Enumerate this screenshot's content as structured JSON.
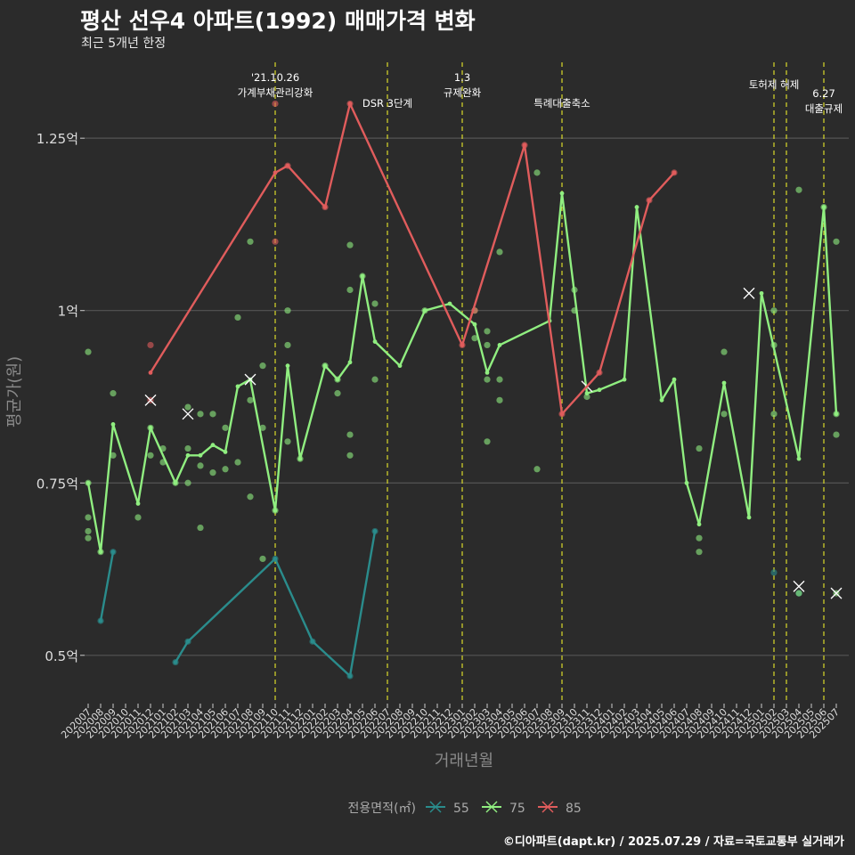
{
  "header": {
    "title": "평산 선우4 아파트(1992) 매매가격 변화",
    "subtitle": "최근 5개년 한정"
  },
  "caption": "©디아파트(dapt.kr) / 2025.07.29 / 자료=국토교통부 실거래가",
  "colors": {
    "background": "#2b2b2b",
    "grid": "#555555",
    "event_line": "#d9d92b",
    "s55": "#2a8c8c",
    "s75": "#90ee80",
    "s85": "#e05c5c"
  },
  "chart_data": {
    "type": "line",
    "title": "평산 선우4 아파트(1992) 매매가격 변화",
    "subtitle": "최근 5개년 한정",
    "xlabel": "거래년월",
    "ylabel": "평균가(원)",
    "ylim": [
      0.43,
      1.36
    ],
    "grid": true,
    "legend_position": "bottom",
    "legend_title": "전용면적(㎡)",
    "x_ticks": [
      "202007",
      "202008",
      "202009",
      "202010",
      "202011",
      "202012",
      "202101",
      "202102",
      "202103",
      "202104",
      "202105",
      "202106",
      "202107",
      "202108",
      "202109",
      "202110",
      "202111",
      "202112",
      "202201",
      "202202",
      "202203",
      "202204",
      "202205",
      "202206",
      "202207",
      "202208",
      "202209",
      "202210",
      "202211",
      "202212",
      "202301",
      "202302",
      "202303",
      "202304",
      "202305",
      "202306",
      "202307",
      "202308",
      "202309",
      "202310",
      "202311",
      "202312",
      "202401",
      "202402",
      "202403",
      "202404",
      "202405",
      "202406",
      "202407",
      "202408",
      "202409",
      "202410",
      "202411",
      "202412",
      "202501",
      "202502",
      "202503",
      "202504",
      "202505",
      "202506",
      "202507"
    ],
    "y_ticks": [
      {
        "value": 0.5,
        "label": "0.5억"
      },
      {
        "value": 0.75,
        "label": "0.75억"
      },
      {
        "value": 1.0,
        "label": "1억"
      },
      {
        "value": 1.25,
        "label": "1.25억"
      }
    ],
    "events": [
      {
        "x": "202110",
        "lines": [
          "'21.10.26",
          "가계부채관리강화"
        ],
        "row": 0
      },
      {
        "x": "202207",
        "lines": [
          "DSR 3단계"
        ],
        "row": 1
      },
      {
        "x": "202301",
        "lines": [
          "1.3",
          "규제완화"
        ],
        "row": 0
      },
      {
        "x": "202309",
        "lines": [
          "특례대출축소"
        ],
        "row": 1
      },
      {
        "x": "202502",
        "lines": [
          "토허제 해제"
        ],
        "row": 2
      },
      {
        "x": "202503",
        "lines": [],
        "row": 2
      },
      {
        "x": "202506",
        "lines": [
          "6.27",
          "대출규제"
        ],
        "row": 3
      }
    ],
    "series": [
      {
        "name": "55",
        "color": "#2a8c8c",
        "line": [
          [
            "202008",
            0.55
          ],
          [
            "202009",
            0.65
          ],
          null,
          [
            "202102",
            0.49
          ],
          [
            "202103",
            0.52
          ],
          [
            "202110",
            0.64
          ],
          [
            "202201",
            0.52
          ],
          [
            "202204",
            0.47
          ],
          [
            "202206",
            0.68
          ]
        ],
        "points": [
          [
            "202008",
            0.55
          ],
          [
            "202009",
            0.65
          ],
          [
            "202102",
            0.49
          ],
          [
            "202103",
            0.52
          ],
          [
            "202110",
            0.64
          ],
          [
            "202201",
            0.52
          ],
          [
            "202204",
            0.47
          ],
          [
            "202206",
            0.68
          ],
          [
            "202502",
            0.62
          ],
          [
            "202504",
            0.59
          ]
        ],
        "x_marks": []
      },
      {
        "name": "75",
        "color": "#90ee80",
        "line": [
          [
            "202007",
            0.75
          ],
          [
            "202008",
            0.65
          ],
          [
            "202009",
            0.835
          ],
          [
            "202011",
            0.72
          ],
          [
            "202012",
            0.83
          ],
          [
            "202102",
            0.75
          ],
          [
            "202103",
            0.79
          ],
          [
            "202104",
            0.79
          ],
          [
            "202105",
            0.805
          ],
          [
            "202106",
            0.795
          ],
          [
            "202107",
            0.89
          ],
          [
            "202108",
            0.9
          ],
          [
            "202110",
            0.71
          ],
          [
            "202111",
            0.92
          ],
          [
            "202112",
            0.785
          ],
          [
            "202202",
            0.92
          ],
          [
            "202203",
            0.9
          ],
          [
            "202204",
            0.925
          ],
          [
            "202205",
            1.05
          ],
          [
            "202206",
            0.955
          ],
          [
            "202208",
            0.92
          ],
          [
            "202210",
            1.0
          ],
          [
            "202212",
            1.01
          ],
          [
            "202302",
            0.98
          ],
          [
            "202303",
            0.91
          ],
          [
            "202304",
            0.95
          ],
          [
            "202308",
            0.985
          ],
          [
            "202309",
            1.17
          ],
          [
            "202311",
            0.88
          ],
          [
            "202312",
            0.885
          ],
          [
            "202402",
            0.9
          ],
          [
            "202403",
            1.15
          ],
          [
            "202405",
            0.87
          ],
          [
            "202406",
            0.9
          ],
          [
            "202407",
            0.75
          ],
          [
            "202408",
            0.69
          ],
          [
            "202410",
            0.895
          ],
          [
            "202412",
            0.7
          ],
          [
            "202501",
            1.025
          ],
          [
            "202504",
            0.785
          ],
          [
            "202506",
            1.15
          ],
          [
            "202507",
            0.85
          ]
        ],
        "points": [
          [
            "202007",
            0.94
          ],
          [
            "202007",
            0.75
          ],
          [
            "202007",
            0.7
          ],
          [
            "202007",
            0.68
          ],
          [
            "202007",
            0.67
          ],
          [
            "202008",
            0.65
          ],
          [
            "202009",
            0.88
          ],
          [
            "202009",
            0.79
          ],
          [
            "202011",
            0.7
          ],
          [
            "202012",
            0.83
          ],
          [
            "202012",
            0.79
          ],
          [
            "202101",
            0.8
          ],
          [
            "202101",
            0.78
          ],
          [
            "202102",
            0.75
          ],
          [
            "202103",
            0.86
          ],
          [
            "202103",
            0.8
          ],
          [
            "202103",
            0.75
          ],
          [
            "202104",
            0.85
          ],
          [
            "202104",
            0.775
          ],
          [
            "202104",
            0.685
          ],
          [
            "202105",
            0.85
          ],
          [
            "202105",
            0.765
          ],
          [
            "202106",
            0.83
          ],
          [
            "202106",
            0.77
          ],
          [
            "202107",
            0.99
          ],
          [
            "202107",
            0.78
          ],
          [
            "202108",
            1.1
          ],
          [
            "202108",
            0.87
          ],
          [
            "202108",
            0.73
          ],
          [
            "202109",
            0.92
          ],
          [
            "202109",
            0.83
          ],
          [
            "202109",
            0.64
          ],
          [
            "202110",
            0.71
          ],
          [
            "202111",
            1.0
          ],
          [
            "202111",
            0.95
          ],
          [
            "202111",
            0.81
          ],
          [
            "202112",
            0.785
          ],
          [
            "202202",
            0.92
          ],
          [
            "202203",
            0.9
          ],
          [
            "202203",
            0.88
          ],
          [
            "202204",
            1.095
          ],
          [
            "202204",
            1.03
          ],
          [
            "202204",
            0.82
          ],
          [
            "202204",
            0.79
          ],
          [
            "202205",
            1.05
          ],
          [
            "202206",
            1.01
          ],
          [
            "202206",
            0.9
          ],
          [
            "202210",
            1.0
          ],
          [
            "202302",
            1.0
          ],
          [
            "202302",
            0.96
          ],
          [
            "202303",
            0.97
          ],
          [
            "202303",
            0.95
          ],
          [
            "202303",
            0.9
          ],
          [
            "202303",
            0.81
          ],
          [
            "202304",
            1.085
          ],
          [
            "202304",
            0.9
          ],
          [
            "202304",
            0.87
          ],
          [
            "202307",
            1.2
          ],
          [
            "202307",
            0.77
          ],
          [
            "202310",
            1.03
          ],
          [
            "202310",
            1.0
          ],
          [
            "202311",
            0.875
          ],
          [
            "202408",
            0.8
          ],
          [
            "202408",
            0.67
          ],
          [
            "202408",
            0.65
          ],
          [
            "202410",
            0.94
          ],
          [
            "202410",
            0.85
          ],
          [
            "202502",
            1.0
          ],
          [
            "202502",
            0.95
          ],
          [
            "202502",
            0.85
          ],
          [
            "202504",
            1.175
          ],
          [
            "202504",
            0.59
          ],
          [
            "202506",
            1.15
          ],
          [
            "202507",
            1.1
          ],
          [
            "202507",
            0.85
          ],
          [
            "202507",
            0.82
          ],
          [
            "202507",
            0.59
          ]
        ],
        "x_marks": [
          [
            "202103",
            0.85
          ],
          [
            "202311",
            0.89
          ],
          [
            "202412",
            1.025
          ],
          [
            "202504",
            0.6
          ],
          [
            "202507",
            0.59
          ]
        ]
      },
      {
        "name": "85",
        "color": "#e05c5c",
        "line": [
          [
            "202012",
            0.91
          ],
          [
            "202110",
            1.2
          ],
          [
            "202111",
            1.21
          ],
          [
            "202202",
            1.15
          ],
          [
            "202204",
            1.3
          ],
          [
            "202301",
            0.95
          ],
          [
            "202306",
            1.24
          ],
          [
            "202309",
            0.85
          ],
          [
            "202312",
            0.91
          ],
          [
            "202404",
            1.16
          ],
          [
            "202406",
            1.2
          ]
        ],
        "points": [
          [
            "202012",
            0.95
          ],
          [
            "202012",
            0.87
          ],
          [
            "202110",
            1.3
          ],
          [
            "202110",
            1.1
          ],
          [
            "202111",
            1.21
          ],
          [
            "202202",
            1.15
          ],
          [
            "202204",
            1.3
          ],
          [
            "202301",
            0.95
          ],
          [
            "202302",
            1.0
          ],
          [
            "202306",
            1.24
          ],
          [
            "202309",
            0.85
          ],
          [
            "202312",
            0.91
          ],
          [
            "202404",
            1.16
          ],
          [
            "202406",
            1.2
          ]
        ],
        "x_marks": [
          [
            "202012",
            0.87
          ],
          [
            "202108",
            0.9
          ]
        ]
      }
    ]
  }
}
